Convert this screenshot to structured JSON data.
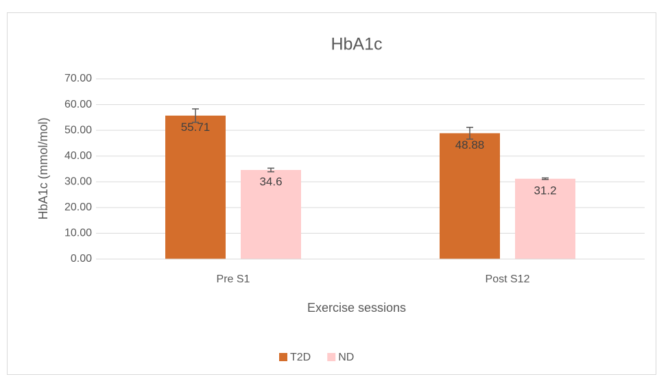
{
  "chart_data": {
    "type": "bar",
    "title": "HbA1c",
    "x_label": "Exercise sessions",
    "y_label": "HbA1c (mmol/mol)",
    "categories": [
      "Pre S1",
      "Post S12"
    ],
    "series": [
      {
        "name": "T2D",
        "color": "#d46e2c",
        "values": [
          55.71,
          48.88
        ],
        "errors": [
          2.6,
          2.3
        ]
      },
      {
        "name": "ND",
        "color": "#ffcccc",
        "values": [
          34.6,
          31.2
        ],
        "errors": [
          0.7,
          0.3
        ]
      }
    ],
    "ylim": [
      0,
      70
    ],
    "yticks": [
      {
        "value": 0,
        "label": "0.00"
      },
      {
        "value": 10,
        "label": "10.00"
      },
      {
        "value": 20,
        "label": "20.00"
      },
      {
        "value": 30,
        "label": "30.00"
      },
      {
        "value": 40,
        "label": "40.00"
      },
      {
        "value": 50,
        "label": "50.00"
      },
      {
        "value": 60,
        "label": "60.00"
      },
      {
        "value": 70,
        "label": "70.00"
      }
    ],
    "grid": true,
    "legend": "bottom"
  }
}
